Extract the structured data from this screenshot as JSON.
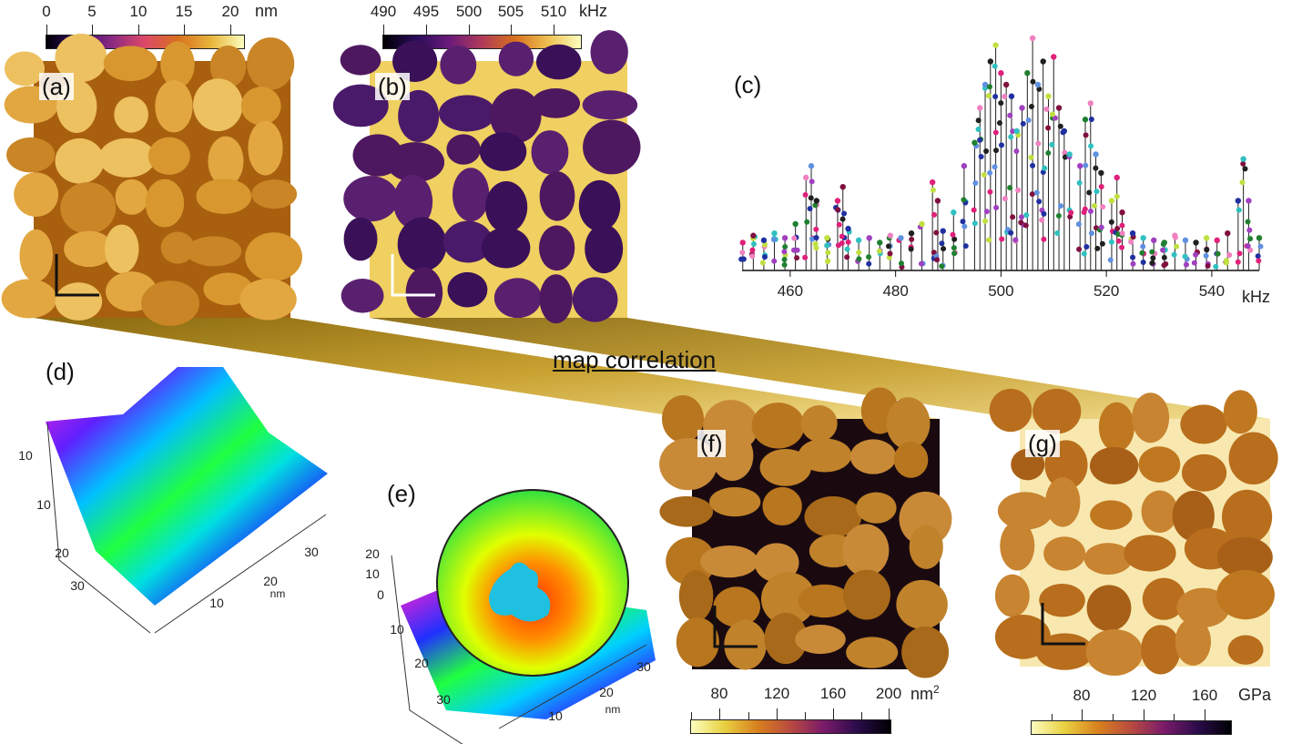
{
  "panels": {
    "a": {
      "label": "(a)",
      "colorbar": {
        "ticks": [
          "0",
          "5",
          "10",
          "15",
          "20"
        ],
        "unit": "nm",
        "colormap": "inferno"
      }
    },
    "b": {
      "label": "(b)",
      "colorbar": {
        "ticks": [
          "490",
          "495",
          "500",
          "505",
          "510"
        ],
        "unit": "kHz",
        "colormap": "inferno"
      }
    },
    "c": {
      "label": "(c)"
    },
    "d": {
      "label": "(d)",
      "z_ticks": [
        "10"
      ],
      "y_ticks": [
        "10",
        "20",
        "30"
      ],
      "x_ticks": [
        "10",
        "20",
        "30"
      ],
      "x_unit": "nm"
    },
    "e": {
      "label": "(e)",
      "z_ticks": [
        "20",
        "10",
        "0"
      ],
      "y_ticks": [
        "10",
        "20",
        "30"
      ],
      "x_ticks": [
        "10",
        "20",
        "30"
      ],
      "x_unit": "nm"
    },
    "f": {
      "label": "(f)",
      "colorbar": {
        "ticks": [
          "80",
          "120",
          "160",
          "200"
        ],
        "unit": "nm",
        "unit_sup": "2",
        "colormap": "inferno-reversed"
      }
    },
    "g": {
      "label": "(g)",
      "colorbar": {
        "ticks": [
          "80",
          "120",
          "160"
        ],
        "unit": "GPa",
        "colormap": "inferno-reversed"
      }
    }
  },
  "annotation": "map correlation",
  "colors": {
    "wedge": "#b08a20",
    "wedge_light": "#e8c860"
  },
  "chart_data": {
    "type": "stem",
    "xlabel": "kHz",
    "xlim": [
      450,
      549
    ],
    "x_ticks": [
      460,
      480,
      500,
      520,
      540
    ],
    "y_axis_shown": false,
    "x": [
      451,
      453,
      455,
      457,
      459,
      461,
      463,
      464,
      465,
      467,
      469,
      470,
      471,
      473,
      475,
      477,
      479,
      481,
      483,
      485,
      487,
      488,
      489,
      491,
      493,
      495,
      496,
      497,
      498,
      499,
      500,
      501,
      502,
      503,
      504,
      505,
      506,
      507,
      508,
      509,
      510,
      511,
      512,
      513,
      515,
      516,
      517,
      518,
      519,
      521,
      522,
      523,
      525,
      527,
      529,
      531,
      533,
      535,
      537,
      539,
      541,
      543,
      545,
      546,
      547,
      549
    ],
    "y": [
      0.12,
      0.15,
      0.13,
      0.16,
      0.14,
      0.2,
      0.4,
      0.45,
      0.3,
      0.14,
      0.3,
      0.36,
      0.18,
      0.13,
      0.14,
      0.12,
      0.15,
      0.14,
      0.16,
      0.2,
      0.38,
      0.3,
      0.17,
      0.25,
      0.45,
      0.55,
      0.7,
      0.8,
      0.9,
      0.97,
      0.85,
      0.8,
      0.75,
      0.6,
      0.7,
      0.85,
      1.0,
      0.8,
      0.9,
      0.75,
      0.92,
      0.7,
      0.6,
      0.5,
      0.45,
      0.65,
      0.72,
      0.5,
      0.42,
      0.3,
      0.4,
      0.25,
      0.16,
      0.14,
      0.13,
      0.12,
      0.15,
      0.13,
      0.12,
      0.14,
      0.13,
      0.16,
      0.3,
      0.48,
      0.3,
      0.14
    ]
  }
}
